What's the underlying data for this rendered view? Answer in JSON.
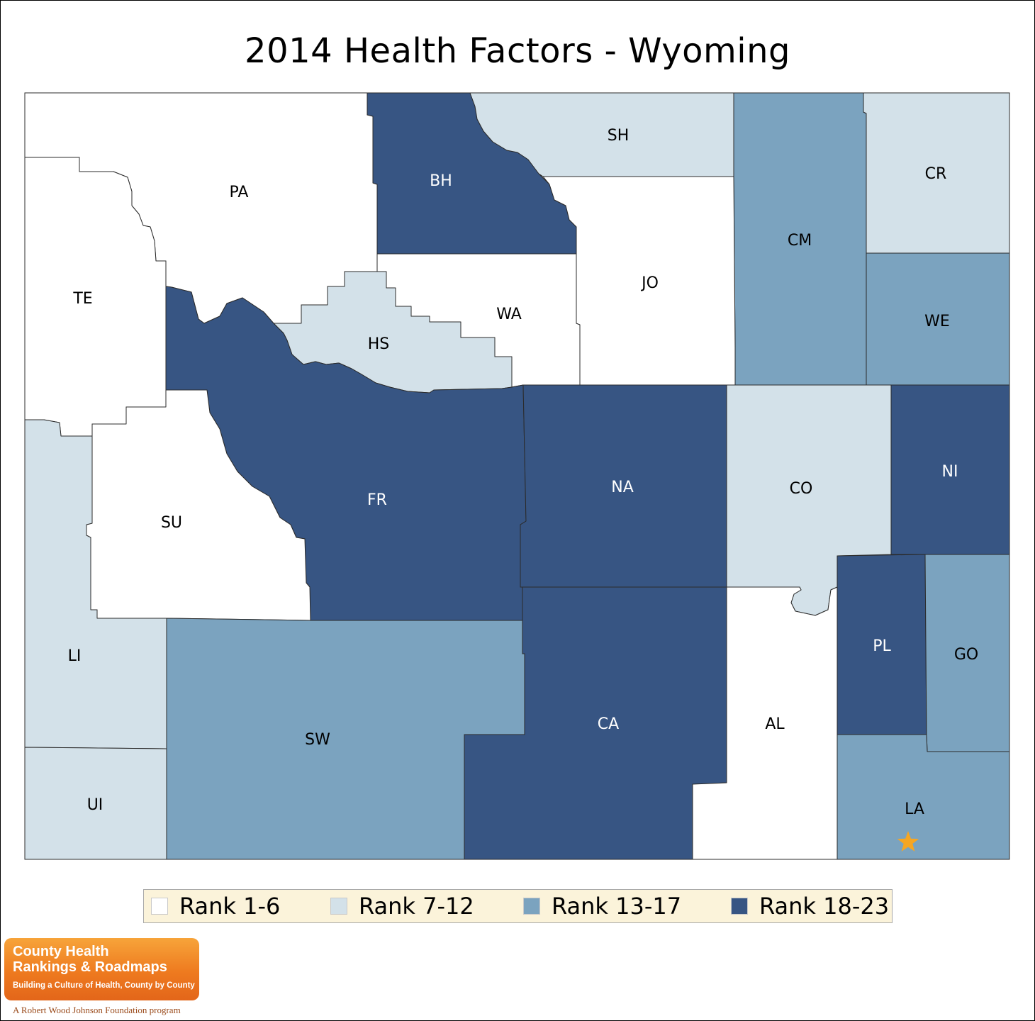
{
  "title": "2014 Health Factors - Wyoming",
  "colors": {
    "rank_1_6": "#ffffff",
    "rank_7_12": "#d3e1e9",
    "rank_13_17": "#7ba3bf",
    "rank_18_23": "#375583",
    "border": "#2b2b2b",
    "marker": "#f6a623"
  },
  "counties": [
    {
      "id": "PA",
      "label": "PA",
      "rank_group": "1-6"
    },
    {
      "id": "BH",
      "label": "BH",
      "rank_group": "18-23"
    },
    {
      "id": "SH",
      "label": "SH",
      "rank_group": "7-12"
    },
    {
      "id": "CM",
      "label": "CM",
      "rank_group": "13-17"
    },
    {
      "id": "CR",
      "label": "CR",
      "rank_group": "7-12"
    },
    {
      "id": "TE",
      "label": "TE",
      "rank_group": "1-6"
    },
    {
      "id": "HS",
      "label": "HS",
      "rank_group": "7-12"
    },
    {
      "id": "WA",
      "label": "WA",
      "rank_group": "1-6"
    },
    {
      "id": "JO",
      "label": "JO",
      "rank_group": "1-6"
    },
    {
      "id": "WE",
      "label": "WE",
      "rank_group": "13-17"
    },
    {
      "id": "FR",
      "label": "FR",
      "rank_group": "18-23"
    },
    {
      "id": "NA",
      "label": "NA",
      "rank_group": "18-23"
    },
    {
      "id": "CO",
      "label": "CO",
      "rank_group": "7-12"
    },
    {
      "id": "NI",
      "label": "NI",
      "rank_group": "18-23"
    },
    {
      "id": "SU",
      "label": "SU",
      "rank_group": "1-6"
    },
    {
      "id": "LI",
      "label": "LI",
      "rank_group": "7-12"
    },
    {
      "id": "PL",
      "label": "PL",
      "rank_group": "18-23"
    },
    {
      "id": "GO",
      "label": "GO",
      "rank_group": "13-17"
    },
    {
      "id": "SW",
      "label": "SW",
      "rank_group": "13-17"
    },
    {
      "id": "CA",
      "label": "CA",
      "rank_group": "18-23"
    },
    {
      "id": "AL",
      "label": "AL",
      "rank_group": "1-6"
    },
    {
      "id": "UI",
      "label": "UI",
      "rank_group": "7-12"
    },
    {
      "id": "LA",
      "label": "LA",
      "rank_group": "13-17"
    }
  ],
  "capital_marker": {
    "county": "LA",
    "icon": "star-icon"
  },
  "legend": [
    {
      "label": "Rank 1-6",
      "group": "1-6"
    },
    {
      "label": "Rank 7-12",
      "group": "7-12"
    },
    {
      "label": "Rank 13-17",
      "group": "13-17"
    },
    {
      "label": "Rank 18-23",
      "group": "18-23"
    }
  ],
  "logo": {
    "line1": "County Health",
    "line2": "Rankings & Roadmaps",
    "tagline": "Building a Culture of Health, County by County",
    "footer": "A Robert Wood Johnson Foundation program"
  }
}
